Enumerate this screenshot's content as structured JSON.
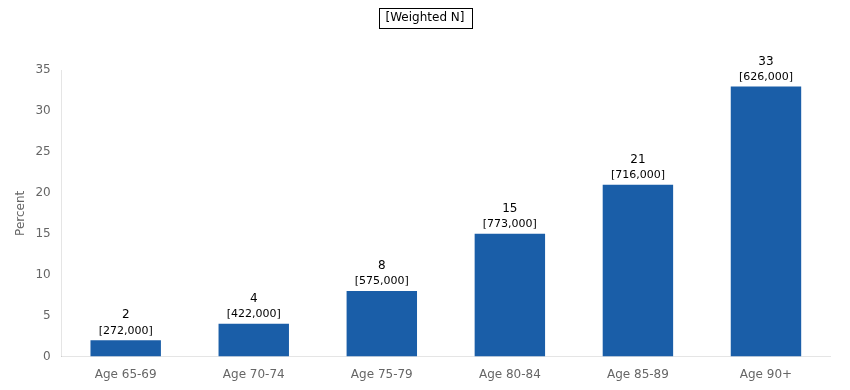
{
  "chart_data": {
    "type": "bar",
    "categories": [
      "Age 65-69",
      "Age 70-74",
      "Age 75-79",
      "Age 80-84",
      "Age 85-89",
      "Age 90+"
    ],
    "values": [
      2,
      4,
      8,
      15,
      21,
      33
    ],
    "weighted_n": [
      "[272,000]",
      "[422,000]",
      "[575,000]",
      "[773,000]",
      "[716,000]",
      "[626,000]"
    ],
    "color": "#1a5ea8",
    "ylabel": "Percent",
    "ylim": [
      0,
      35
    ],
    "yticks": [
      0,
      5,
      10,
      15,
      20,
      25,
      30,
      35
    ],
    "annotations": [
      "[Weighted N]"
    ],
    "data_labels": true,
    "grid": false
  }
}
